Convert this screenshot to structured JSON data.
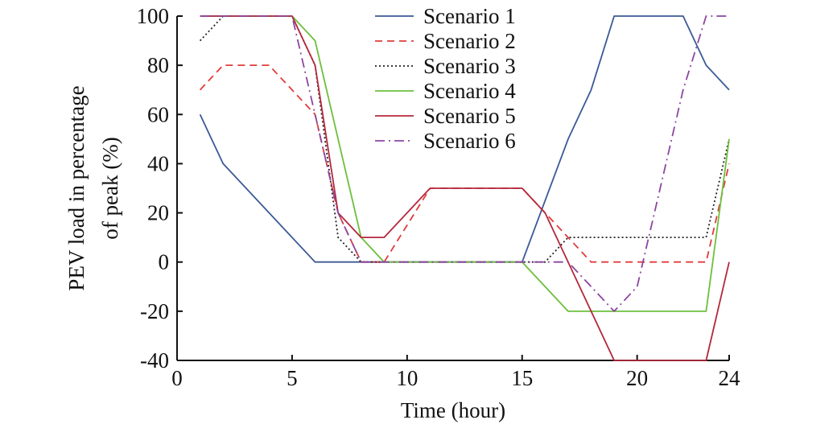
{
  "chart_data": {
    "type": "line",
    "title": "",
    "xlabel": "Time (hour)",
    "ylabel_lines": [
      "PEV load in percentage",
      "of peak (%)"
    ],
    "xlim": [
      0,
      24
    ],
    "ylim": [
      -40,
      100
    ],
    "xticks": [
      0,
      5,
      10,
      15,
      20,
      24
    ],
    "yticks": [
      -40,
      -20,
      0,
      20,
      40,
      60,
      80,
      100
    ],
    "grid": false,
    "legend_position": "top-center",
    "series": [
      {
        "name": "Scenario 1",
        "color": "#3c5a96",
        "dash": "solid",
        "points": [
          [
            1,
            60
          ],
          [
            2,
            40
          ],
          [
            6,
            0
          ],
          [
            15,
            0
          ],
          [
            17,
            50
          ],
          [
            18,
            70
          ],
          [
            19,
            100
          ],
          [
            22,
            100
          ],
          [
            23,
            80
          ],
          [
            24,
            70
          ]
        ]
      },
      {
        "name": "Scenario 2",
        "color": "#e03c3c",
        "dash": "dashed",
        "points": [
          [
            1,
            70
          ],
          [
            2,
            80
          ],
          [
            4,
            80
          ],
          [
            6,
            60
          ],
          [
            7,
            20
          ],
          [
            8,
            0
          ],
          [
            9,
            0
          ],
          [
            11,
            30
          ],
          [
            15,
            30
          ],
          [
            16,
            20
          ],
          [
            17,
            10
          ],
          [
            18,
            0
          ],
          [
            23,
            0
          ],
          [
            24,
            40
          ]
        ]
      },
      {
        "name": "Scenario 3",
        "color": "#222222",
        "dash": "dotted",
        "points": [
          [
            1,
            90
          ],
          [
            2,
            100
          ],
          [
            5,
            100
          ],
          [
            6,
            80
          ],
          [
            7,
            10
          ],
          [
            8,
            0
          ],
          [
            16,
            0
          ],
          [
            17,
            10
          ],
          [
            23,
            10
          ],
          [
            24,
            50
          ]
        ]
      },
      {
        "name": "Scenario 4",
        "color": "#6cbf3c",
        "dash": "solid",
        "points": [
          [
            1,
            100
          ],
          [
            5,
            100
          ],
          [
            6,
            90
          ],
          [
            8,
            10
          ],
          [
            9,
            0
          ],
          [
            15,
            0
          ],
          [
            17,
            -20
          ],
          [
            23,
            -20
          ],
          [
            24,
            50
          ]
        ]
      },
      {
        "name": "Scenario 5",
        "color": "#b4283c",
        "dash": "solid",
        "points": [
          [
            1,
            100
          ],
          [
            5,
            100
          ],
          [
            6,
            80
          ],
          [
            7,
            20
          ],
          [
            8,
            10
          ],
          [
            9,
            10
          ],
          [
            11,
            30
          ],
          [
            15,
            30
          ],
          [
            16,
            20
          ],
          [
            19,
            -40
          ],
          [
            23,
            -40
          ],
          [
            24,
            0
          ]
        ]
      },
      {
        "name": "Scenario 6",
        "color": "#8c46a0",
        "dash": "dashdot",
        "points": [
          [
            1,
            100
          ],
          [
            5,
            100
          ],
          [
            6,
            60
          ],
          [
            7,
            20
          ],
          [
            8,
            0
          ],
          [
            17,
            0
          ],
          [
            18,
            -10
          ],
          [
            19,
            -20
          ],
          [
            20,
            -10
          ],
          [
            21,
            30
          ],
          [
            22,
            70
          ],
          [
            23,
            100
          ],
          [
            24,
            100
          ]
        ]
      }
    ]
  }
}
